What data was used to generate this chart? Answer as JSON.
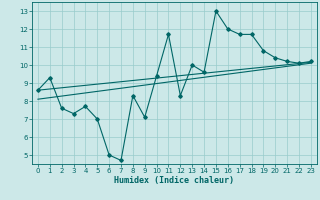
{
  "title": "",
  "xlabel": "Humidex (Indice chaleur)",
  "ylabel": "",
  "bg_color": "#cce8e8",
  "grid_color": "#99cccc",
  "line_color": "#006666",
  "spine_color": "#006666",
  "xlim": [
    -0.5,
    23.5
  ],
  "ylim": [
    4.5,
    13.5
  ],
  "xticks": [
    0,
    1,
    2,
    3,
    4,
    5,
    6,
    7,
    8,
    9,
    10,
    11,
    12,
    13,
    14,
    15,
    16,
    17,
    18,
    19,
    20,
    21,
    22,
    23
  ],
  "yticks": [
    5,
    6,
    7,
    8,
    9,
    10,
    11,
    12,
    13
  ],
  "main_line_x": [
    0,
    1,
    2,
    3,
    4,
    5,
    6,
    7,
    8,
    9,
    10,
    11,
    12,
    13,
    14,
    15,
    16,
    17,
    18,
    19,
    20,
    21,
    22,
    23
  ],
  "main_line_y": [
    8.6,
    9.3,
    7.6,
    7.3,
    7.7,
    7.0,
    5.0,
    4.7,
    8.3,
    7.1,
    9.4,
    11.7,
    8.3,
    10.0,
    9.6,
    13.0,
    12.0,
    11.7,
    11.7,
    10.8,
    10.4,
    10.2,
    10.1,
    10.2
  ],
  "upper_line_x": [
    0,
    23
  ],
  "upper_line_y": [
    8.6,
    10.15
  ],
  "lower_line_x": [
    0,
    23
  ],
  "lower_line_y": [
    8.1,
    10.1
  ],
  "marker": "D",
  "marker_size": 1.8,
  "linewidth": 0.8,
  "tick_fontsize": 5.0,
  "xlabel_fontsize": 6.0
}
